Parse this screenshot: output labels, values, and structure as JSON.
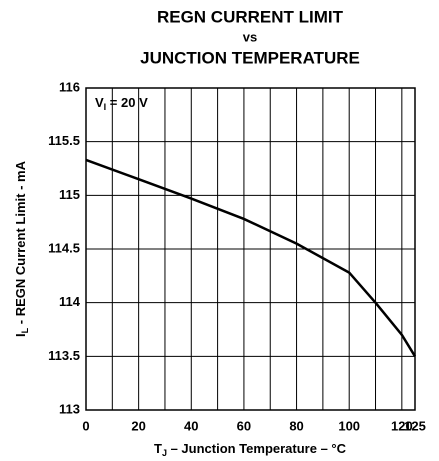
{
  "chart_data": {
    "type": "line",
    "title": [
      "REGN CURRENT LIMIT",
      "vs",
      "JUNCTION TEMPERATURE"
    ],
    "annotation": [
      "V",
      "I",
      " = 20 V"
    ],
    "ylabel": [
      "I",
      "L",
      " - REGN Current Limit - mA"
    ],
    "xlabel": [
      "T",
      "J",
      " – Junction Temperature – °C"
    ],
    "x": [
      0,
      20,
      40,
      60,
      80,
      100,
      110,
      120,
      125
    ],
    "series": [
      {
        "color": "#000000",
        "values": [
          115.33,
          115.15,
          114.97,
          114.78,
          114.55,
          114.28,
          114.0,
          113.7,
          113.5
        ]
      }
    ],
    "xlim": [
      0,
      125
    ],
    "ylim": [
      113,
      116
    ],
    "xticks": [
      0,
      20,
      40,
      60,
      80,
      100,
      120,
      125
    ],
    "xgrid": [
      0,
      10,
      20,
      30,
      40,
      50,
      60,
      70,
      80,
      90,
      100,
      110,
      120,
      125
    ],
    "yticks": [
      113,
      113.5,
      114,
      114.5,
      115,
      115.5,
      116
    ],
    "grid": true
  }
}
